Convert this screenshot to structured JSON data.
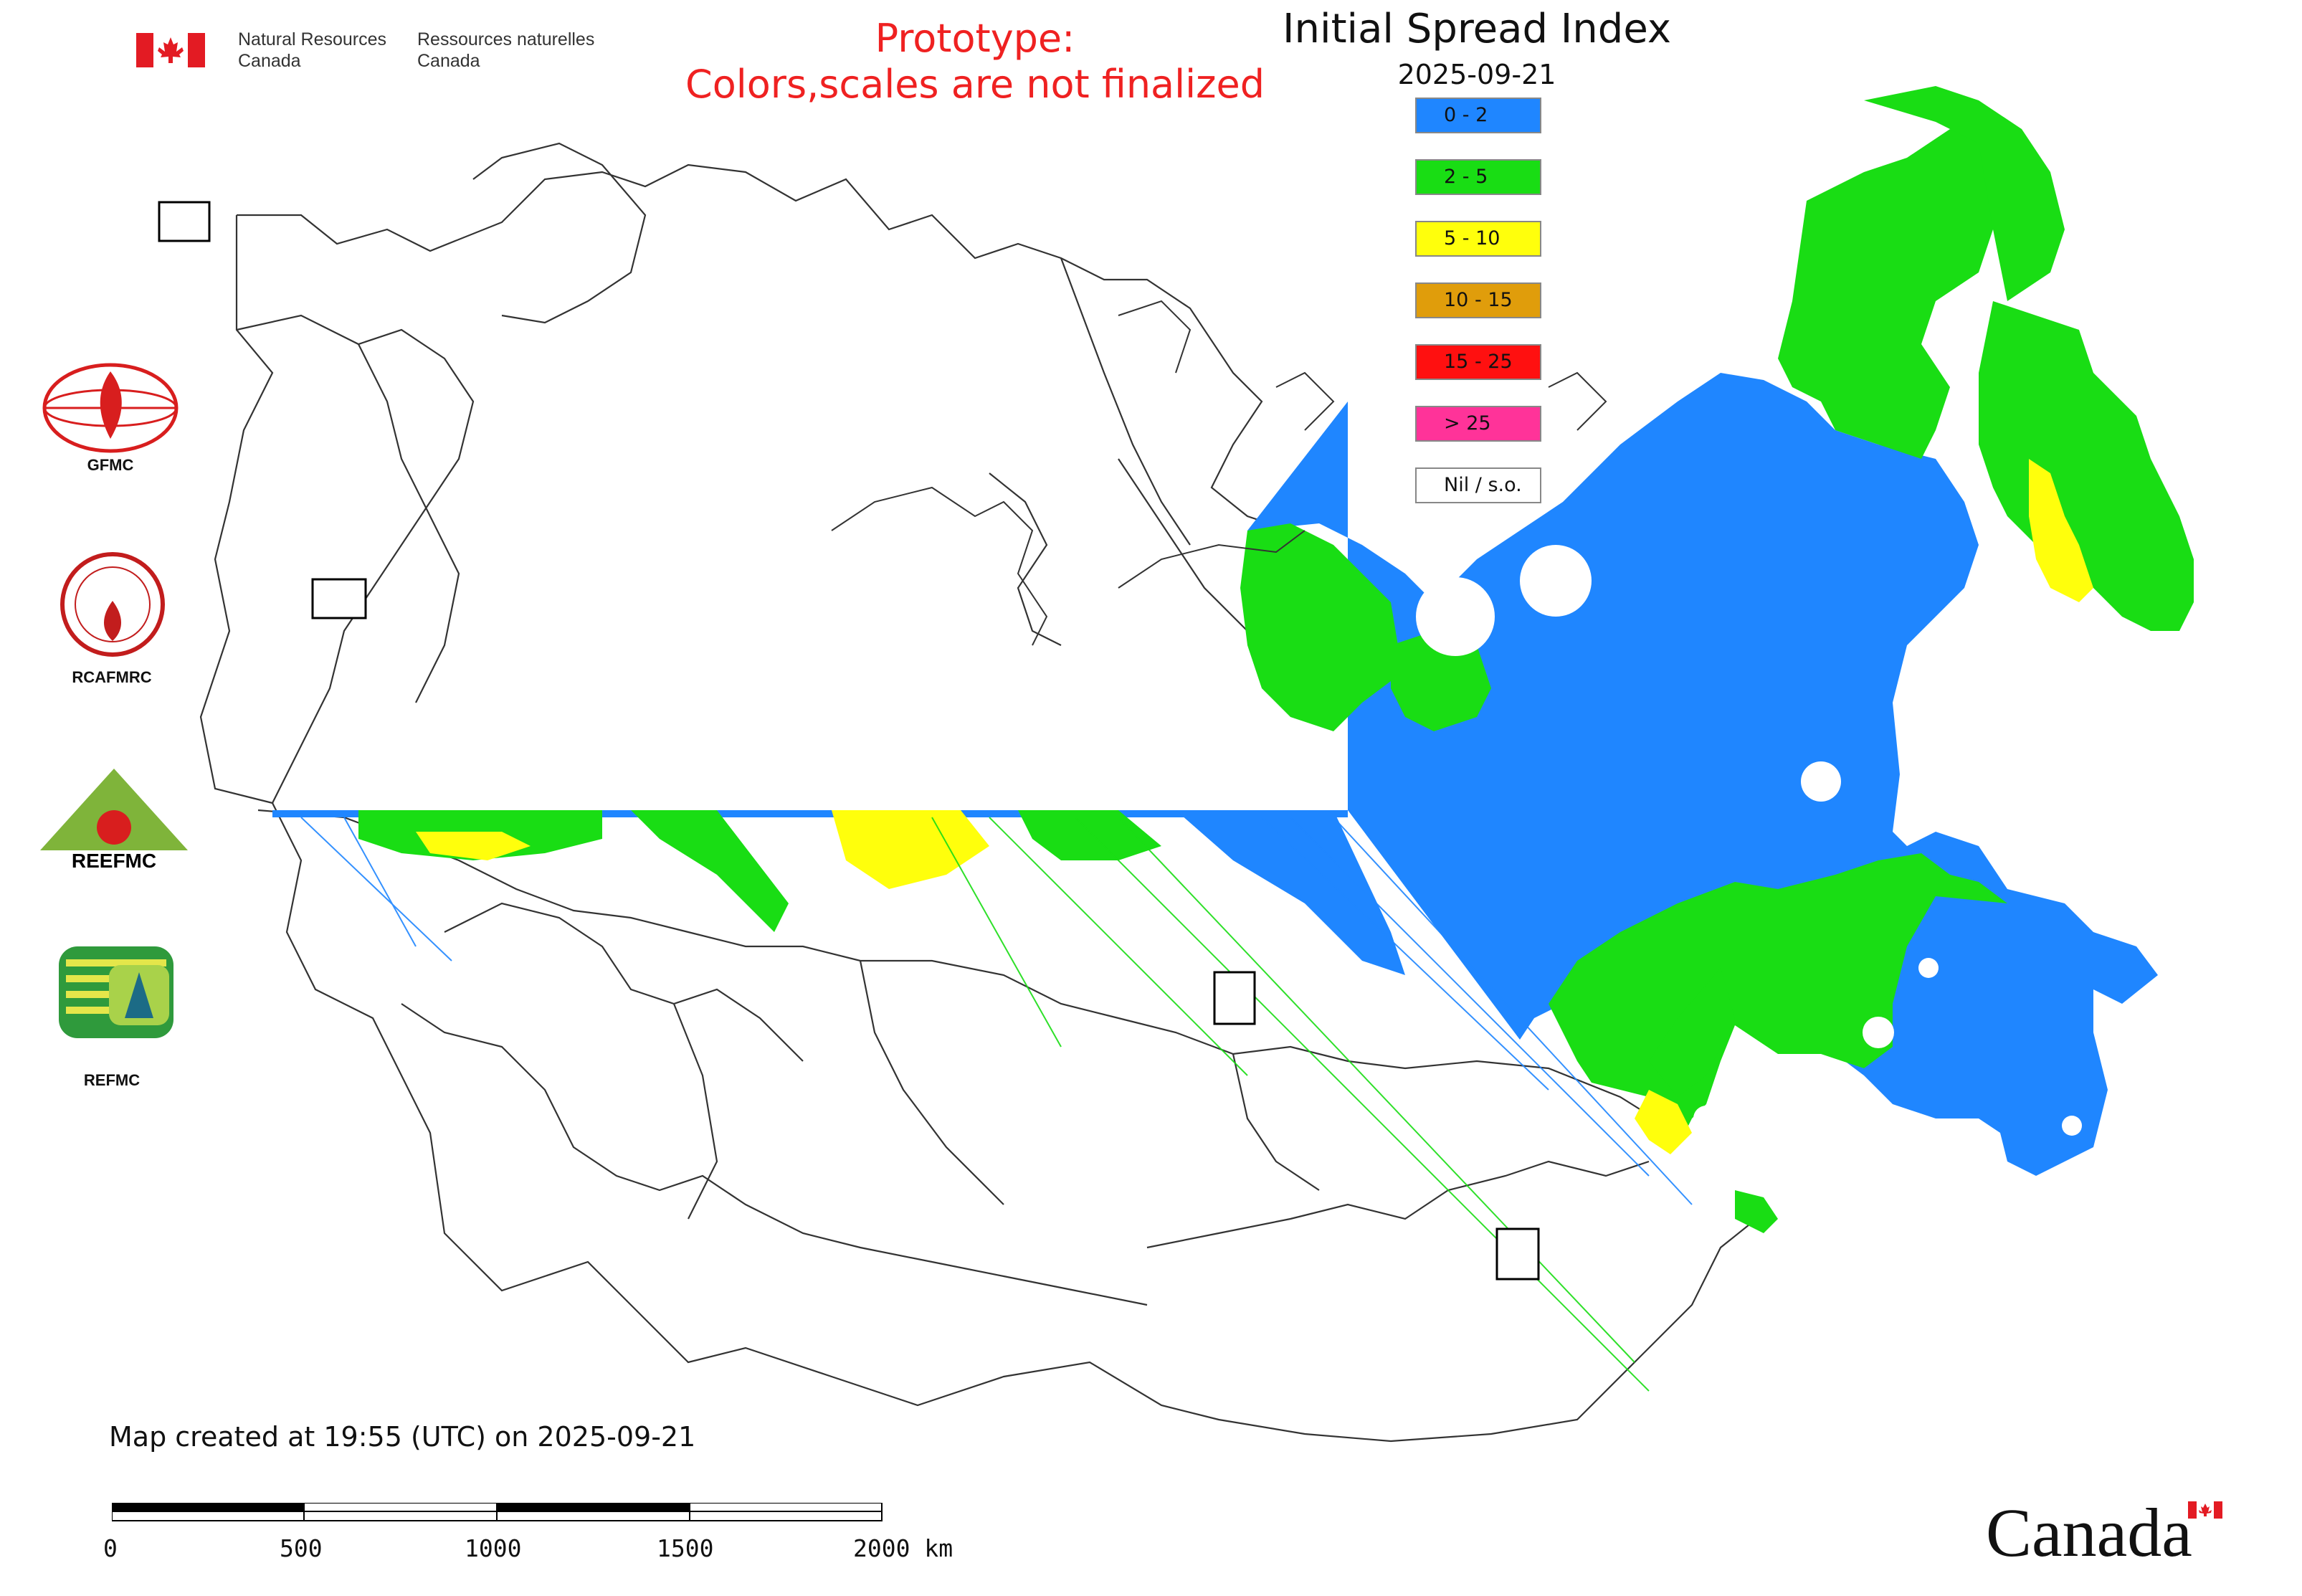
{
  "header": {
    "agency_en_1": "Natural Resources",
    "agency_en_2": "Canada",
    "agency_fr_1": "Ressources naturelles",
    "agency_fr_2": "Canada",
    "prototype_line1": "Prototype:",
    "prototype_line2": "Colors,scales are not finalized",
    "map_title": "Initial Spread Index",
    "map_date": "2025-09-21"
  },
  "legend": {
    "items": [
      {
        "label": "0 - 2",
        "color": "#1f86ff"
      },
      {
        "label": "2 - 5",
        "color": "#19dd14"
      },
      {
        "label": "5 - 10",
        "color": "#ffff0c"
      },
      {
        "label": "10 - 15",
        "color": "#e09d0b"
      },
      {
        "label": "15 - 25",
        "color": "#ff1010"
      },
      {
        "label": "> 25",
        "color": "#ff3399"
      },
      {
        "label": "Nil / s.o.",
        "color": "#ffffff"
      }
    ]
  },
  "side_logos": {
    "gfmc": "GFMC",
    "rcafmrc": "RCAFMRC",
    "reefmc": "REEFMC",
    "refmc": "REFMC"
  },
  "footer": {
    "created_text": "Map created at 19:55 (UTC) on 2025-09-21",
    "scale_ticks": [
      "0",
      "500",
      "1000",
      "1500",
      "2000 km"
    ]
  },
  "brand": {
    "wordmark": "Canada",
    "flag_red": "#e31b23"
  },
  "map": {
    "colors": {
      "low": "#1f86ff",
      "moderate": "#19dd14",
      "high": "#ffff0c",
      "border": "#333333"
    }
  }
}
